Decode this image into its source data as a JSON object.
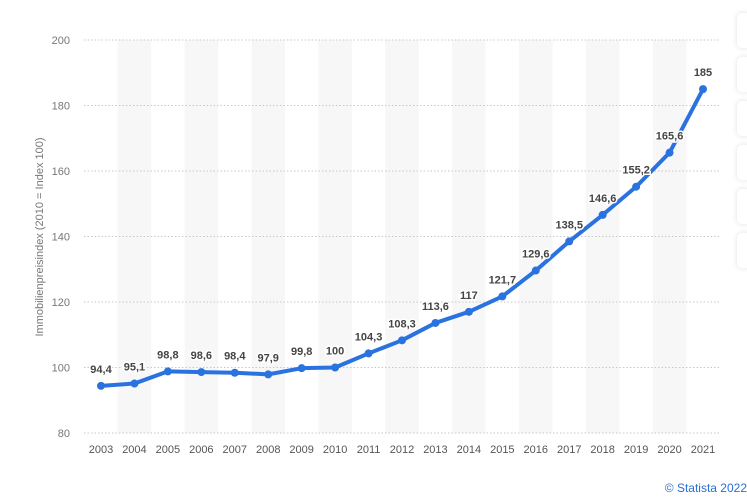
{
  "chart_data": {
    "type": "line",
    "title": "",
    "xlabel": "",
    "ylabel": "Immobilienpreisindex (2010 = Index 100)",
    "ylim": [
      80,
      200
    ],
    "yticks": [
      "80",
      "100",
      "120",
      "140",
      "160",
      "180",
      "200"
    ],
    "categories": [
      "2003",
      "2004",
      "2005",
      "2006",
      "2007",
      "2008",
      "2009",
      "2010",
      "2011",
      "2012",
      "2013",
      "2014",
      "2015",
      "2016",
      "2017",
      "2018",
      "2019",
      "2020",
      "2021"
    ],
    "values": [
      94.4,
      95.1,
      98.8,
      98.6,
      98.4,
      97.9,
      99.8,
      100,
      104.3,
      108.3,
      113.6,
      117,
      121.7,
      129.6,
      138.5,
      146.6,
      155.2,
      165.6,
      185
    ],
    "data_labels": [
      "94,4",
      "95,1",
      "98,8",
      "98,6",
      "98,4",
      "97,9",
      "99,8",
      "100",
      "104,3",
      "108,3",
      "113,6",
      "117",
      "121,7",
      "129,6",
      "138,5",
      "146,6",
      "155,2",
      "165,6",
      "185"
    ],
    "grid": true,
    "line_color": "#2a72e0"
  },
  "footer": {
    "copyright": "© Statista 2022"
  }
}
